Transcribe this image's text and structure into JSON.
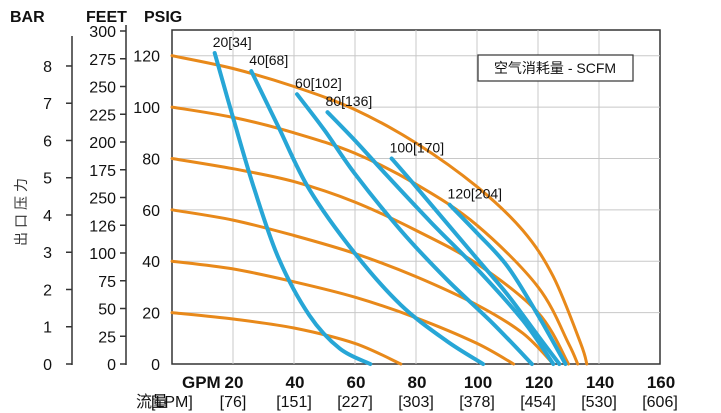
{
  "chart_data": {
    "type": "line",
    "units_headers": [
      "BAR",
      "FEET",
      "PSIG"
    ],
    "y_axis_label": "出口压力",
    "x_axis_label": "流量",
    "psig_ticks": [
      "0",
      "20",
      "40",
      "60",
      "80",
      "100",
      "120"
    ],
    "bar_ticks": [
      "0",
      "1",
      "2",
      "3",
      "4",
      "5",
      "6",
      "7",
      "8"
    ],
    "feet_ticks": [
      "0",
      "25",
      "50",
      "75",
      "100",
      "126",
      "250",
      "175",
      "200",
      "225",
      "250",
      "275",
      "300"
    ],
    "gpm_label": "GPM",
    "gpm_ticks": [
      "20",
      "40",
      "60",
      "80",
      "100",
      "120",
      "140",
      "160"
    ],
    "lpm_label": "[LPM]",
    "lpm_ticks": [
      "[76]",
      "[151]",
      "[227]",
      "[303]",
      "[378]",
      "[454]",
      "[530]",
      "[606]"
    ],
    "legend": "空气消耗量 - SCFM",
    "xlim": [
      0,
      160
    ],
    "ylim": [
      0,
      130
    ],
    "pressure_curves": [
      {
        "name": "20 psi",
        "points": [
          [
            0,
            20
          ],
          [
            20,
            17.5
          ],
          [
            40,
            14
          ],
          [
            60,
            8
          ],
          [
            75,
            0
          ]
        ]
      },
      {
        "name": "40 psi",
        "points": [
          [
            0,
            40
          ],
          [
            20,
            37
          ],
          [
            40,
            32
          ],
          [
            60,
            26
          ],
          [
            80,
            18
          ],
          [
            100,
            8
          ],
          [
            112,
            0
          ]
        ]
      },
      {
        "name": "60 psi",
        "points": [
          [
            0,
            60
          ],
          [
            20,
            56
          ],
          [
            40,
            50
          ],
          [
            60,
            43
          ],
          [
            80,
            34
          ],
          [
            100,
            23
          ],
          [
            115,
            12
          ],
          [
            125,
            0
          ]
        ]
      },
      {
        "name": "80 psi",
        "points": [
          [
            0,
            80
          ],
          [
            20,
            76
          ],
          [
            40,
            71
          ],
          [
            60,
            63
          ],
          [
            80,
            52
          ],
          [
            100,
            39
          ],
          [
            120,
            20
          ],
          [
            130,
            0
          ]
        ]
      },
      {
        "name": "100 psi",
        "points": [
          [
            0,
            100
          ],
          [
            20,
            96
          ],
          [
            40,
            90
          ],
          [
            60,
            82
          ],
          [
            80,
            70
          ],
          [
            100,
            54
          ],
          [
            120,
            30
          ],
          [
            130,
            8
          ],
          [
            133,
            0
          ]
        ]
      },
      {
        "name": "120 psi",
        "points": [
          [
            0,
            120
          ],
          [
            20,
            115
          ],
          [
            40,
            108
          ],
          [
            60,
            99
          ],
          [
            80,
            86
          ],
          [
            100,
            69
          ],
          [
            115,
            52
          ],
          [
            125,
            34
          ],
          [
            134,
            8
          ],
          [
            136,
            0
          ]
        ]
      }
    ],
    "air_curves": [
      {
        "label": "20[34]",
        "points": [
          [
            14,
            121
          ],
          [
            20,
            96
          ],
          [
            27,
            68
          ],
          [
            35,
            41
          ],
          [
            45,
            19
          ],
          [
            55,
            6
          ],
          [
            65,
            0
          ]
        ]
      },
      {
        "label": "40[68]",
        "points": [
          [
            26,
            114
          ],
          [
            35,
            92
          ],
          [
            45,
            68
          ],
          [
            60,
            43
          ],
          [
            75,
            23
          ],
          [
            90,
            9
          ],
          [
            102,
            0
          ]
        ]
      },
      {
        "label": "60[102]",
        "points": [
          [
            41,
            105
          ],
          [
            50,
            91
          ],
          [
            60,
            74
          ],
          [
            75,
            52
          ],
          [
            90,
            33
          ],
          [
            105,
            16
          ],
          [
            118,
            0
          ]
        ]
      },
      {
        "label": "80[136]",
        "points": [
          [
            51,
            98
          ],
          [
            60,
            87
          ],
          [
            70,
            74
          ],
          [
            85,
            55
          ],
          [
            100,
            37
          ],
          [
            115,
            17
          ],
          [
            125,
            0
          ]
        ]
      },
      {
        "label": "100[170]",
        "points": [
          [
            72,
            80
          ],
          [
            80,
            69
          ],
          [
            90,
            55
          ],
          [
            100,
            41
          ],
          [
            110,
            27
          ],
          [
            120,
            11
          ],
          [
            127,
            0
          ]
        ]
      },
      {
        "label": "120[204]",
        "points": [
          [
            91,
            62
          ],
          [
            100,
            51
          ],
          [
            110,
            38
          ],
          [
            120,
            19
          ],
          [
            129,
            0
          ]
        ]
      }
    ]
  },
  "colors": {
    "pressure": "#e8891a",
    "air": "#27a6d6",
    "axis": "#333333"
  }
}
